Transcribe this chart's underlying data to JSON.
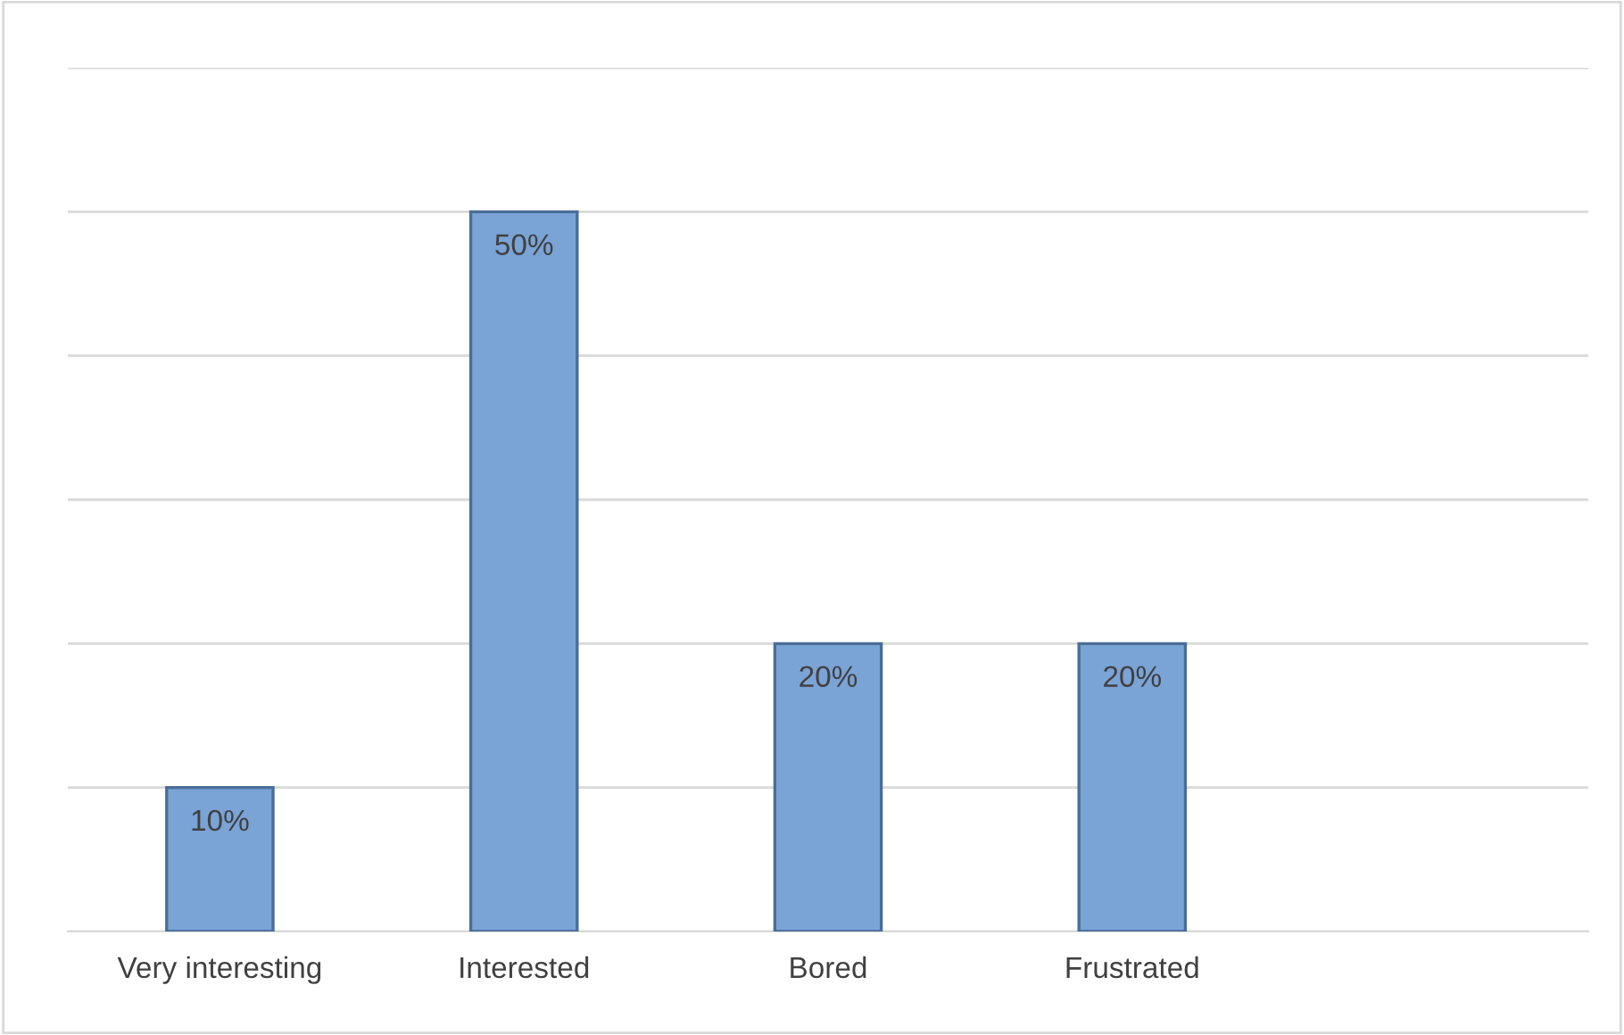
{
  "chart_data": {
    "type": "bar",
    "categories": [
      "Very interesting",
      "Interested",
      "Bored",
      "Frustrated",
      null
    ],
    "values": [
      10,
      50,
      20,
      20,
      null
    ],
    "value_labels": [
      "10%",
      "50%",
      "20%",
      "20%",
      null
    ],
    "color": "#7aa3d6",
    "ylim": [
      0,
      60
    ],
    "yticks": [
      {
        "value": 0,
        "label": null
      },
      {
        "value": 10,
        "label": null
      },
      {
        "value": 20,
        "label": null
      },
      {
        "value": 30,
        "label": null
      },
      {
        "value": 40,
        "label": null
      },
      {
        "value": 50,
        "label": null
      },
      {
        "value": 60,
        "label": null
      }
    ],
    "grid": "y",
    "legend": false
  }
}
